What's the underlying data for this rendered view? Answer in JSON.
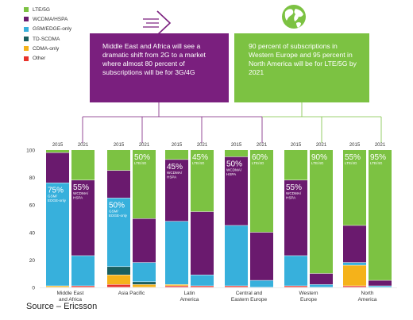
{
  "legend": [
    {
      "label": "LTE/5G",
      "color": "#7cc242"
    },
    {
      "label": "WCDMA/HSPA",
      "color": "#6a1a6e"
    },
    {
      "label": "GSM/EDGE-only",
      "color": "#37b0dc"
    },
    {
      "label": "TD-SCDMA",
      "color": "#1a5f5f"
    },
    {
      "label": "CDMA-only",
      "color": "#f5b21a"
    },
    {
      "label": "Other",
      "color": "#e8322a"
    }
  ],
  "callouts": {
    "left": {
      "text": "Middle East and Africa will see a dramatic shift from 2G to a market where almost 80 percent of subscriptions will be for 3G/4G",
      "icon": "arrow-icon"
    },
    "right": {
      "text": "90 percent of subscriptions in Western Europe and 95 percent in North America will be for LTE/5G by 2021",
      "icon": "globe-icon"
    }
  },
  "source": "Source – Ericsson",
  "chart_data": {
    "type": "bar",
    "stacked": true,
    "ylim": [
      0,
      100
    ],
    "yticks": [
      0,
      20,
      40,
      60,
      80,
      100
    ],
    "grid": false,
    "regions": [
      {
        "name": "Middle East\nand Africa",
        "years": [
          {
            "year": "2015",
            "values": {
              "LTE/5G": 2,
              "WCDMA/HSPA": 22,
              "GSM/EDGE-only": 75,
              "TD-SCDMA": 0,
              "CDMA-only": 1,
              "Other": 0
            },
            "label": {
              "pct": "75%",
              "text": "GSM/\nEDGE-only",
              "series": "GSM/EDGE-only"
            }
          },
          {
            "year": "2021",
            "values": {
              "LTE/5G": 22,
              "WCDMA/HSPA": 55,
              "GSM/EDGE-only": 22,
              "TD-SCDMA": 0,
              "CDMA-only": 0,
              "Other": 1
            },
            "label": {
              "pct": "55%",
              "text": "WCDMA/\nHSPA",
              "series": "WCDMA/HSPA"
            }
          }
        ]
      },
      {
        "name": "Asia Pacific",
        "years": [
          {
            "year": "2015",
            "values": {
              "LTE/5G": 15,
              "WCDMA/HSPA": 20,
              "GSM/EDGE-only": 50,
              "TD-SCDMA": 6,
              "CDMA-only": 7,
              "Other": 2
            },
            "label": {
              "pct": "50%",
              "text": "GSM/\nEDGE-only",
              "series": "GSM/EDGE-only"
            }
          },
          {
            "year": "2021",
            "values": {
              "LTE/5G": 50,
              "WCDMA/HSPA": 32,
              "GSM/EDGE-only": 14,
              "TD-SCDMA": 2,
              "CDMA-only": 2,
              "Other": 0
            },
            "label": {
              "pct": "50%",
              "text": "LTE/4G",
              "series": "LTE/5G"
            }
          }
        ]
      },
      {
        "name": "Latin\nAmerica",
        "years": [
          {
            "year": "2015",
            "values": {
              "LTE/5G": 7,
              "WCDMA/HSPA": 45,
              "GSM/EDGE-only": 46,
              "TD-SCDMA": 0,
              "CDMA-only": 1,
              "Other": 1
            },
            "label": {
              "pct": "45%",
              "text": "WCDMA/\nHSPA",
              "series": "WCDMA/HSPA"
            }
          },
          {
            "year": "2021",
            "values": {
              "LTE/5G": 45,
              "WCDMA/HSPA": 46,
              "GSM/EDGE-only": 8,
              "TD-SCDMA": 0,
              "CDMA-only": 0,
              "Other": 1
            },
            "label": {
              "pct": "45%",
              "text": "LTE/4G",
              "series": "LTE/5G"
            }
          }
        ]
      },
      {
        "name": "Central and\nEastern Europe",
        "years": [
          {
            "year": "2015",
            "values": {
              "LTE/5G": 5,
              "WCDMA/HSPA": 50,
              "GSM/EDGE-only": 44,
              "TD-SCDMA": 0,
              "CDMA-only": 0,
              "Other": 1
            },
            "label": {
              "pct": "50%",
              "text": "WCDMA/\nHSPA",
              "series": "WCDMA/HSPA"
            }
          },
          {
            "year": "2021",
            "values": {
              "LTE/5G": 60,
              "WCDMA/HSPA": 35,
              "GSM/EDGE-only": 5,
              "TD-SCDMA": 0,
              "CDMA-only": 0,
              "Other": 0
            },
            "label": {
              "pct": "60%",
              "text": "LTE/4G",
              "series": "LTE/5G"
            }
          }
        ]
      },
      {
        "name": "Western\nEurope",
        "years": [
          {
            "year": "2015",
            "values": {
              "LTE/5G": 22,
              "WCDMA/HSPA": 55,
              "GSM/EDGE-only": 22,
              "TD-SCDMA": 0,
              "CDMA-only": 0,
              "Other": 1
            },
            "label": {
              "pct": "55%",
              "text": "WCDMA/\nHSPA",
              "series": "WCDMA/HSPA"
            }
          },
          {
            "year": "2021",
            "values": {
              "LTE/5G": 90,
              "WCDMA/HSPA": 8,
              "GSM/EDGE-only": 2,
              "TD-SCDMA": 0,
              "CDMA-only": 0,
              "Other": 0
            },
            "label": {
              "pct": "90%",
              "text": "LTE/4G",
              "series": "LTE/5G"
            }
          }
        ]
      },
      {
        "name": "North\nAmerica",
        "years": [
          {
            "year": "2015",
            "values": {
              "LTE/5G": 55,
              "WCDMA/HSPA": 27,
              "GSM/EDGE-only": 2,
              "TD-SCDMA": 0,
              "CDMA-only": 15,
              "Other": 1
            },
            "label": {
              "pct": "55%",
              "text": "LTE/4G",
              "series": "LTE/5G"
            }
          },
          {
            "year": "2021",
            "values": {
              "LTE/5G": 95,
              "WCDMA/HSPA": 4,
              "GSM/EDGE-only": 1,
              "TD-SCDMA": 0,
              "CDMA-only": 0,
              "Other": 0
            },
            "label": {
              "pct": "95%",
              "text": "LTE/4G",
              "series": "LTE/5G"
            }
          }
        ]
      }
    ]
  }
}
